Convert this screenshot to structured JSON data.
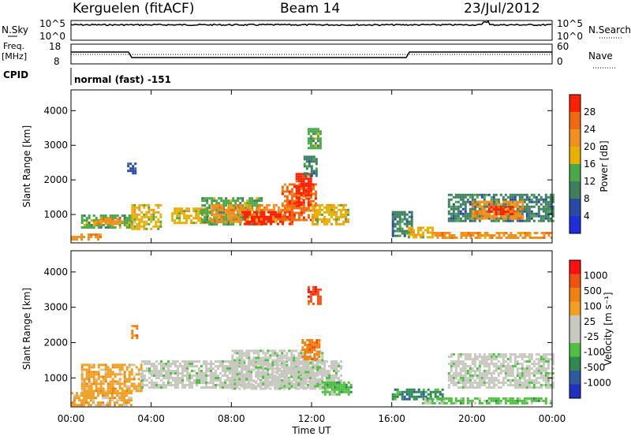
{
  "header": {
    "station": "Kerguelen (fitACF)",
    "beam": "Beam 14",
    "date": "23/Jul/2012"
  },
  "top_panels": {
    "nsky_label": "N.Sky",
    "nsky_ticks": [
      "10^5",
      "10^0"
    ],
    "nsearch_label": "N.Search",
    "nsearch_ticks": [
      "10^5",
      "10^0"
    ],
    "freq_label_line1": "Freq.",
    "freq_label_line2": "[MHz]",
    "freq_ticks": [
      "18",
      "8"
    ],
    "nave_label": "Nave",
    "nave_ticks": [
      "60",
      "0"
    ],
    "cpid_label": "CPID",
    "cpid_text": "normal (fast) -151"
  },
  "x_axis": {
    "ticks": [
      "00:00",
      "04:00",
      "08:00",
      "12:00",
      "16:00",
      "20:00",
      "00:00"
    ],
    "label": "Time UT"
  },
  "colors": {
    "power_scale": [
      "#1e2ed8",
      "#2a4aa8",
      "#3d7f5e",
      "#4aa84a",
      "#e8b000",
      "#f09020",
      "#f06a10",
      "#ff2000"
    ],
    "velocity_scale": [
      "#2030c0",
      "#2f5aa0",
      "#2e8a50",
      "#50c040",
      "#c8c8c0",
      "#c8c8c0",
      "#f0a020",
      "#f08010",
      "#f05010",
      "#ff1010"
    ]
  },
  "chart_data": [
    {
      "type": "heatmap",
      "name": "power",
      "ylabel": "Slant Range [km]",
      "yticks": [
        "1000",
        "2000",
        "3000",
        "4000"
      ],
      "ylim": [
        180,
        4600
      ],
      "xlim": [
        0,
        24
      ],
      "colorbar_label": "Power [dB]",
      "colorbar_ticks": [
        "4",
        "8",
        "12",
        "16",
        "20",
        "24",
        "28"
      ],
      "regions": [
        {
          "t0": 0.5,
          "t1": 3.0,
          "r0": 650,
          "r1": 1000,
          "level": 3
        },
        {
          "t0": 1.2,
          "t1": 2.6,
          "r0": 700,
          "r1": 900,
          "level": 5
        },
        {
          "t0": 3.0,
          "t1": 4.5,
          "r0": 600,
          "r1": 1300,
          "level": 4
        },
        {
          "t0": 5.0,
          "t1": 7.0,
          "r0": 750,
          "r1": 1200,
          "level": 4
        },
        {
          "t0": 6.5,
          "t1": 9.5,
          "r0": 700,
          "r1": 1500,
          "level": 3
        },
        {
          "t0": 7.0,
          "t1": 11.0,
          "r0": 800,
          "r1": 1300,
          "level": 5
        },
        {
          "t0": 8.5,
          "t1": 11.0,
          "r0": 750,
          "r1": 1100,
          "level": 7
        },
        {
          "t0": 10.5,
          "t1": 12.2,
          "r0": 850,
          "r1": 1900,
          "level": 6
        },
        {
          "t0": 11.2,
          "t1": 12.0,
          "r0": 1300,
          "r1": 2200,
          "level": 7
        },
        {
          "t0": 12.0,
          "t1": 13.8,
          "r0": 700,
          "r1": 1300,
          "level": 4
        },
        {
          "t0": 11.8,
          "t1": 12.4,
          "r0": 2900,
          "r1": 3500,
          "level": 3
        },
        {
          "t0": 11.6,
          "t1": 12.2,
          "r0": 2100,
          "r1": 2700,
          "level": 2
        },
        {
          "t0": 16.0,
          "t1": 17.0,
          "r0": 350,
          "r1": 1100,
          "level": 2
        },
        {
          "t0": 16.8,
          "t1": 18.0,
          "r0": 350,
          "r1": 650,
          "level": 4
        },
        {
          "t0": 18.0,
          "t1": 24.0,
          "r0": 300,
          "r1": 500,
          "level": 5
        },
        {
          "t0": 18.8,
          "t1": 24.0,
          "r0": 800,
          "r1": 1600,
          "level": 2
        },
        {
          "t0": 20.0,
          "t1": 22.5,
          "r0": 900,
          "r1": 1400,
          "level": 5
        },
        {
          "t0": 20.8,
          "t1": 22.0,
          "r0": 1000,
          "r1": 1250,
          "level": 7
        },
        {
          "t0": 0.0,
          "t1": 1.5,
          "r0": 250,
          "r1": 450,
          "level": 5
        },
        {
          "t0": 2.8,
          "t1": 3.2,
          "r0": 2200,
          "r1": 2500,
          "level": 1
        }
      ]
    },
    {
      "type": "heatmap",
      "name": "velocity",
      "ylabel": "Slant Range [km]",
      "yticks": [
        "1000",
        "2000",
        "3000",
        "4000"
      ],
      "ylim": [
        180,
        4600
      ],
      "xlim": [
        0,
        24
      ],
      "colorbar_label": "Velocity [m s⁻¹]",
      "colorbar_ticks": [
        "1000",
        "500",
        "100",
        "25",
        "-25",
        "-100",
        "-500",
        "-1000"
      ],
      "regions": [
        {
          "t0": 0.5,
          "t1": 3.5,
          "r0": 650,
          "r1": 1400,
          "level": 6
        },
        {
          "t0": 0.0,
          "t1": 3.0,
          "r0": 200,
          "r1": 600,
          "level": 6
        },
        {
          "t0": 3.5,
          "t1": 13.5,
          "r0": 700,
          "r1": 1500,
          "level": 4
        },
        {
          "t0": 8.0,
          "t1": 12.5,
          "r0": 700,
          "r1": 1800,
          "level": 4
        },
        {
          "t0": 11.5,
          "t1": 12.4,
          "r0": 1500,
          "r1": 2100,
          "level": 7
        },
        {
          "t0": 11.8,
          "t1": 12.4,
          "r0": 3100,
          "r1": 3600,
          "level": 8
        },
        {
          "t0": 12.5,
          "t1": 14.0,
          "r0": 500,
          "r1": 900,
          "level": 3
        },
        {
          "t0": 16.0,
          "t1": 18.5,
          "r0": 400,
          "r1": 700,
          "level": 2
        },
        {
          "t0": 17.5,
          "t1": 24.0,
          "r0": 250,
          "r1": 450,
          "level": 3
        },
        {
          "t0": 18.8,
          "t1": 24.0,
          "r0": 750,
          "r1": 1700,
          "level": 4
        },
        {
          "t0": 3.0,
          "t1": 3.3,
          "r0": 2100,
          "r1": 2500,
          "level": 7
        }
      ]
    }
  ]
}
